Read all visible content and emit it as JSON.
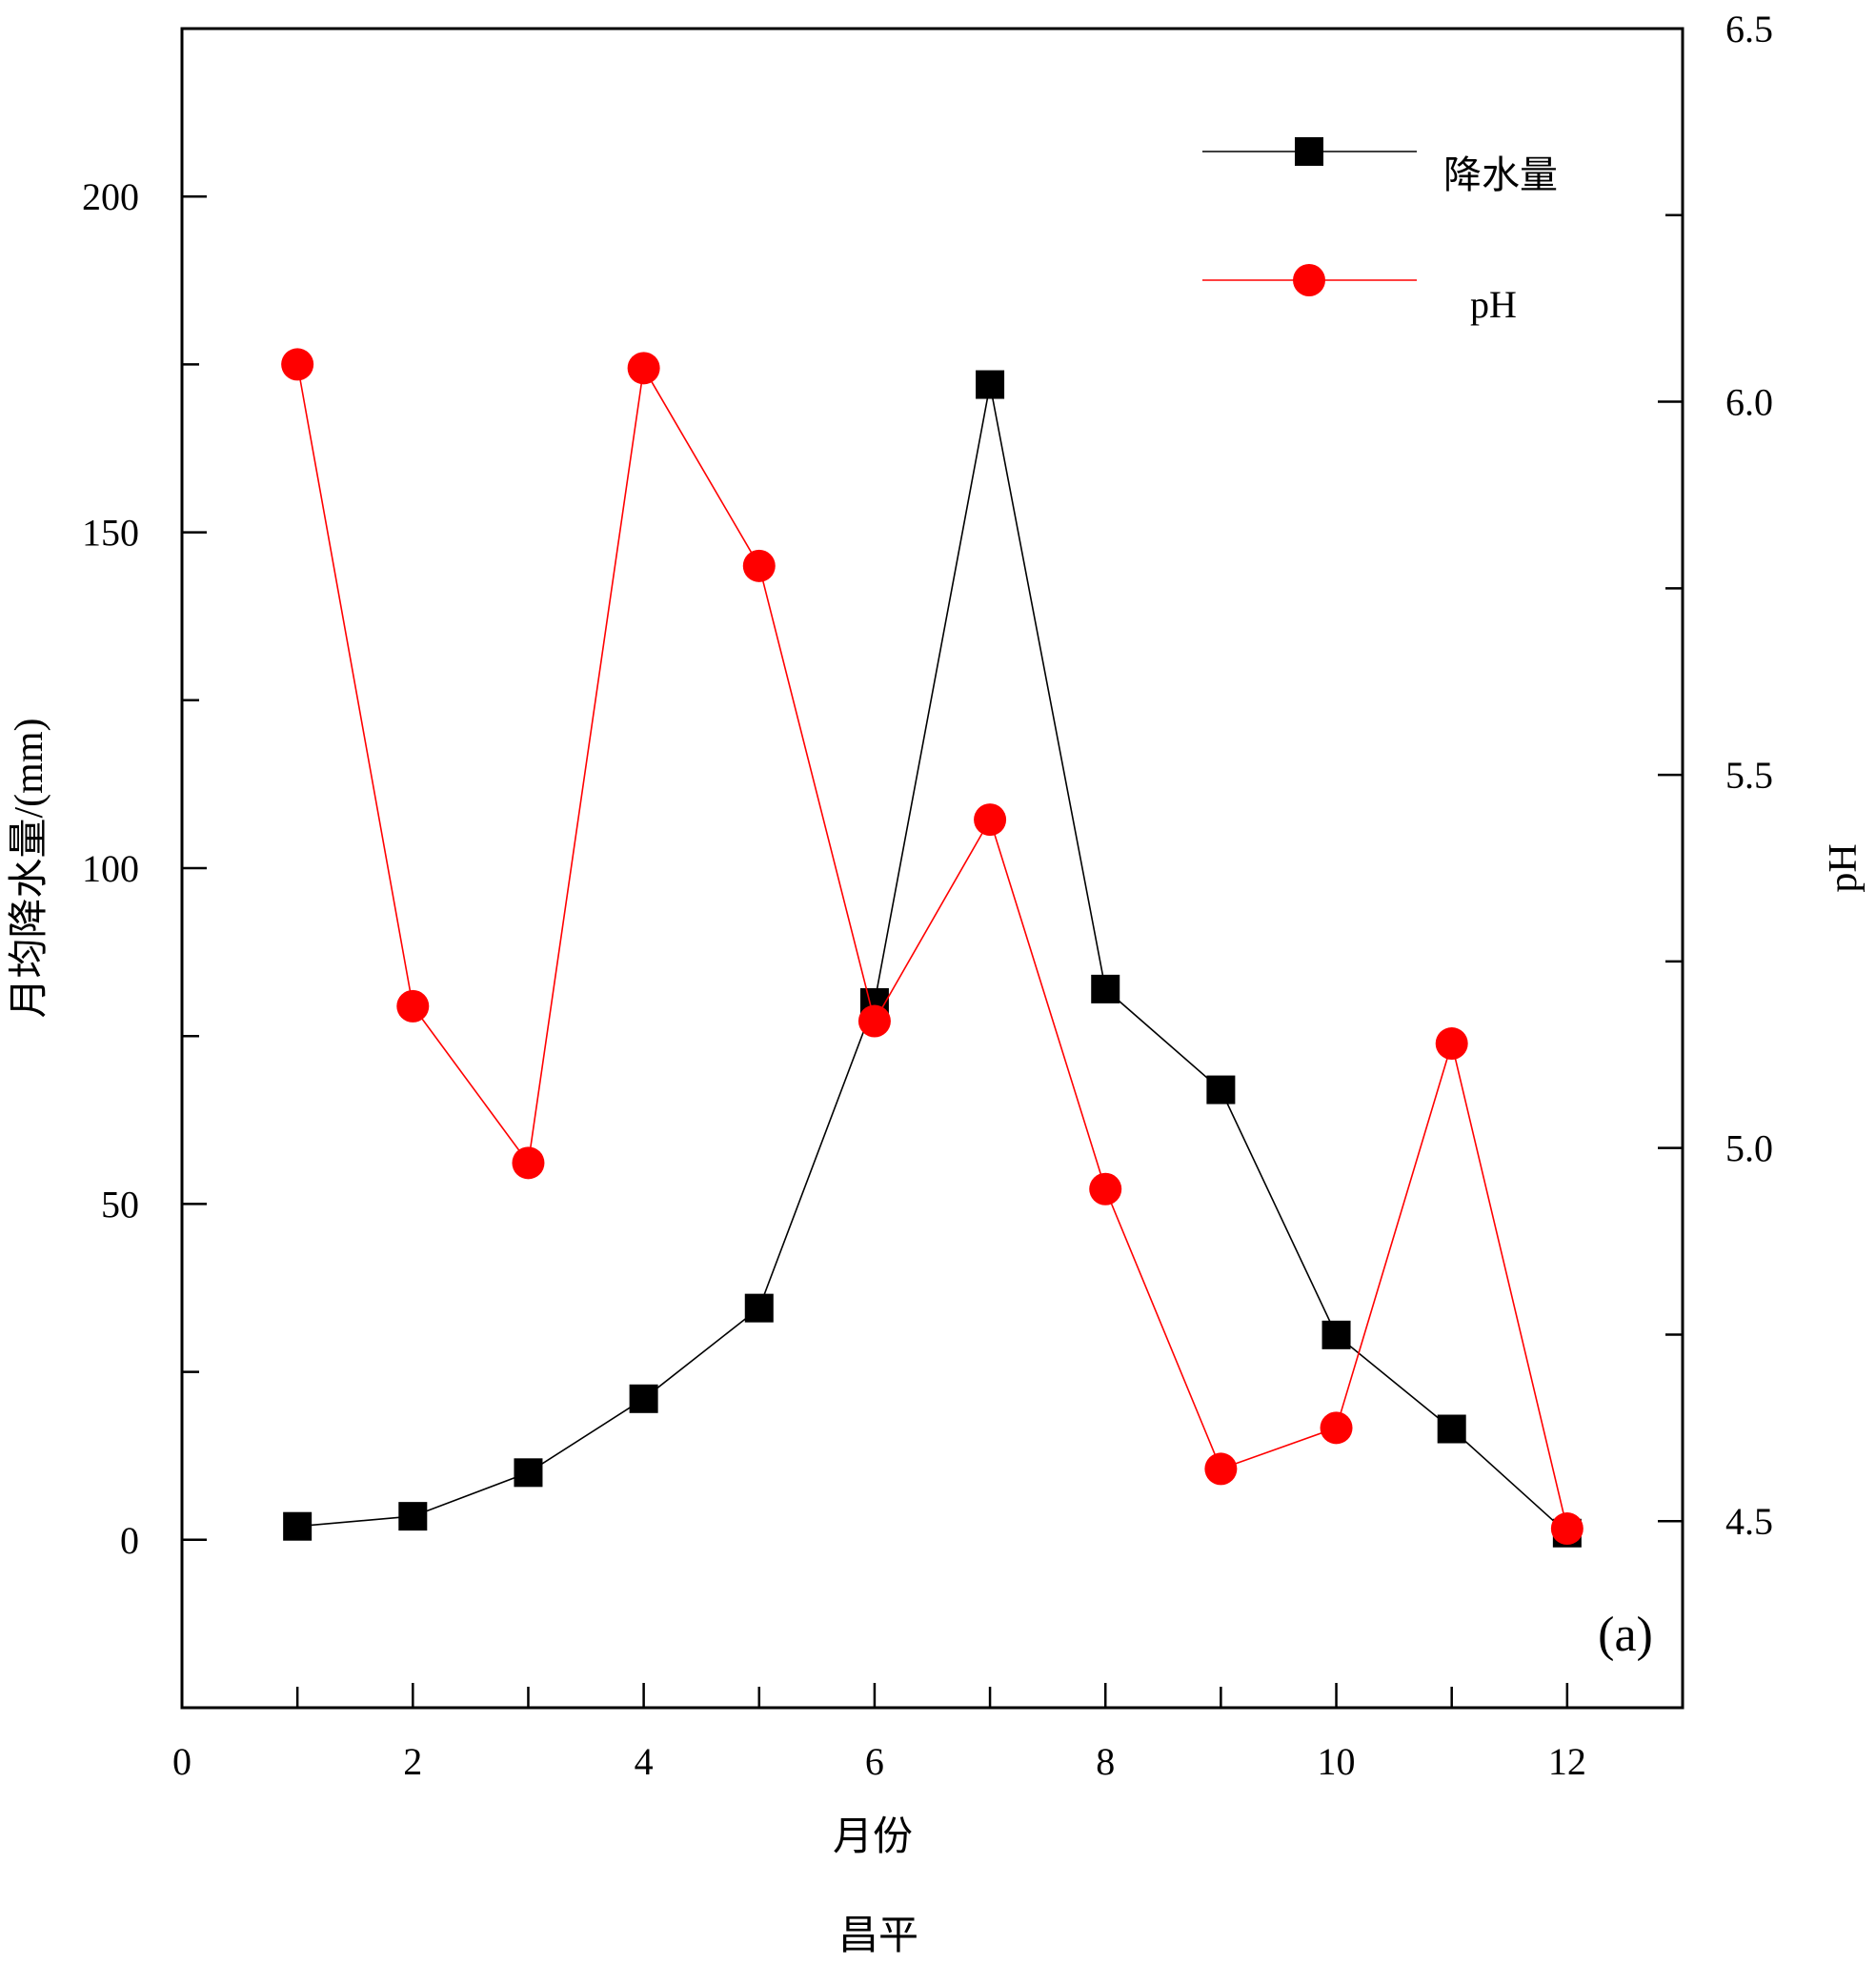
{
  "chart_data": {
    "type": "line",
    "panel_label": "(a)",
    "subtitle": "昌平",
    "xlabel": "月份",
    "ylabel_left": "月均降水量/(mm)",
    "ylabel_right": "pH",
    "xlim": [
      0,
      13
    ],
    "ylim_left": [
      -25,
      225
    ],
    "ylim_right": [
      4.25,
      6.5
    ],
    "x_ticks": [
      0,
      2,
      4,
      6,
      8,
      10,
      12
    ],
    "y_left_ticks": [
      0,
      50,
      100,
      150,
      200
    ],
    "y_right_ticks": [
      "4.5",
      "5.0",
      "5.5",
      "6.0",
      "6.5"
    ],
    "grid": false,
    "legend_position": "top-right",
    "series": [
      {
        "name": "降水量",
        "axis": "left",
        "color": "#000000",
        "marker": "square",
        "x": [
          1,
          2,
          3,
          4,
          5,
          6,
          7,
          8,
          9,
          10,
          11,
          12
        ],
        "values": [
          2,
          3.5,
          10,
          21,
          34.5,
          80,
          172,
          82,
          67,
          30.5,
          16.5,
          1
        ]
      },
      {
        "name": "pH",
        "axis": "right",
        "color": "#ff0000",
        "marker": "circle",
        "x": [
          1,
          2,
          3,
          4,
          5,
          6,
          7,
          8,
          9,
          10,
          11,
          12
        ],
        "values": [
          6.05,
          5.19,
          4.98,
          6.045,
          5.78,
          5.17,
          5.44,
          4.945,
          4.57,
          4.625,
          5.14,
          4.49
        ]
      }
    ]
  }
}
